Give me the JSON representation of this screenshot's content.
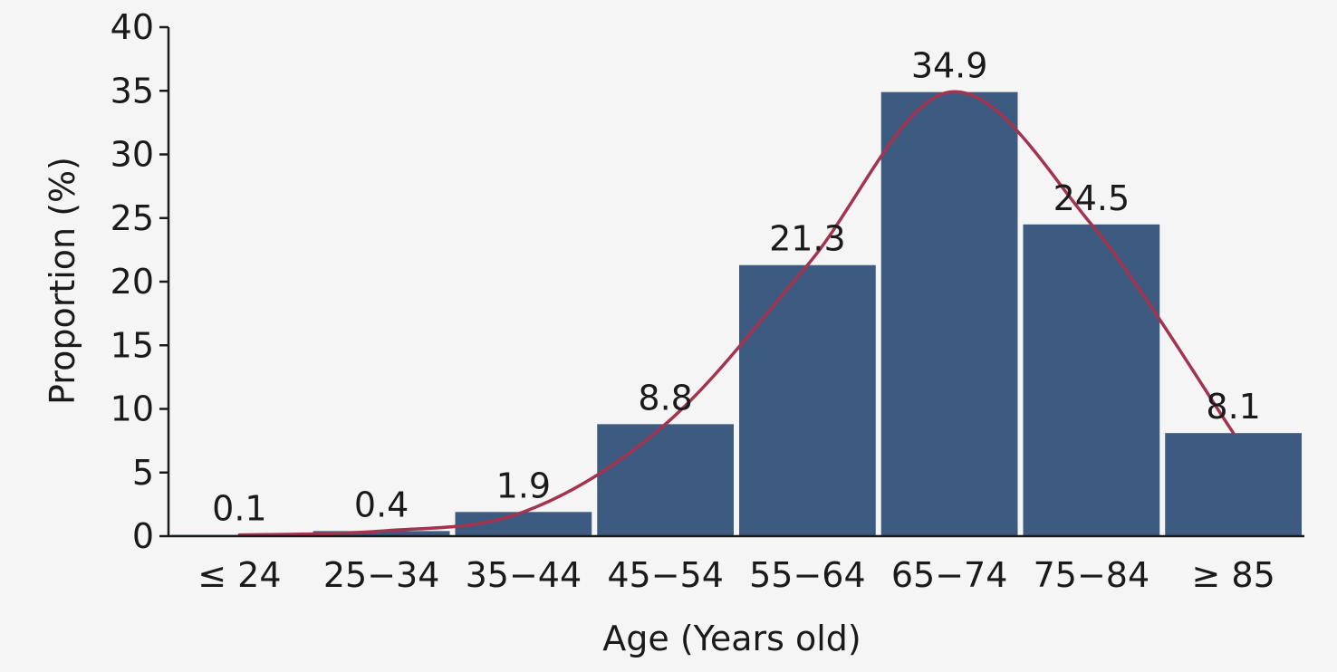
{
  "chart_data": {
    "type": "bar",
    "categories": [
      "≤ 24",
      "25−34",
      "35−44",
      "45−54",
      "55−64",
      "65−74",
      "75−84",
      "≥ 85"
    ],
    "values": [
      0.1,
      0.4,
      1.9,
      8.8,
      21.3,
      34.9,
      24.5,
      8.1
    ],
    "data_labels": [
      "0.1",
      "0.4",
      "1.9",
      "8.8",
      "21.3",
      "34.9",
      "24.5",
      "8.1"
    ],
    "xlabel": "Age (Years old)",
    "ylabel": "Proportion (%)",
    "ylim": [
      0,
      40
    ],
    "yticks": [
      0,
      5,
      10,
      15,
      20,
      25,
      30,
      35,
      40
    ],
    "grid": false,
    "overlay": {
      "type": "smooth-line",
      "follows": "values"
    },
    "colors": {
      "bar": "#3d5a80",
      "curve": "#a3344f",
      "axis": "#1a1a1a",
      "background": "#f5f5f5"
    }
  }
}
